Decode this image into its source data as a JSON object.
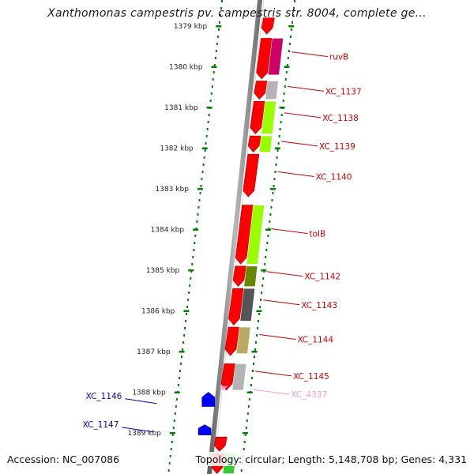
{
  "title": "Xanthomonas campestris pv. campestris str. 8004, complete ge...",
  "accession_label": "Accession: NC_007086",
  "summary_label": "Topology: circular; Length: 5,148,708 bp; Genes: 4,331",
  "colors": {
    "forward_gene": "#ff0000",
    "reverse_gene": "#0000ff",
    "pseudogene": "#ff99cc",
    "backbone": "#808080",
    "tick": "#008000"
  },
  "ruler": {
    "unit": "kbp",
    "ticks": [
      {
        "kbp": 1379,
        "label": "1379 kbp"
      },
      {
        "kbp": 1380,
        "label": "1380 kbp"
      },
      {
        "kbp": 1381,
        "label": "1381 kbp"
      },
      {
        "kbp": 1382,
        "label": "1382 kbp"
      },
      {
        "kbp": 1383,
        "label": "1383 kbp"
      },
      {
        "kbp": 1384,
        "label": "1384 kbp"
      },
      {
        "kbp": 1385,
        "label": "1385 kbp"
      },
      {
        "kbp": 1386,
        "label": "1386 kbp"
      },
      {
        "kbp": 1387,
        "label": "1387 kbp"
      },
      {
        "kbp": 1388,
        "label": "1388 kbp"
      },
      {
        "kbp": 1389,
        "label": "1389 kbp"
      }
    ]
  },
  "features": [
    {
      "kind": "gene",
      "strand": "+",
      "start": 1378.8,
      "end": 1379.2
    },
    {
      "kind": "gene",
      "strand": "+",
      "start": 1379.3,
      "end": 1380.3
    },
    {
      "kind": "gene",
      "strand": "+",
      "start": 1380.35,
      "end": 1380.8
    },
    {
      "kind": "gene",
      "strand": "+",
      "start": 1380.85,
      "end": 1381.65
    },
    {
      "kind": "gene",
      "strand": "+",
      "start": 1381.7,
      "end": 1382.1
    },
    {
      "kind": "gene",
      "strand": "+",
      "start": 1382.15,
      "end": 1383.2
    },
    {
      "kind": "gene",
      "strand": "+",
      "start": 1383.4,
      "end": 1384.85
    },
    {
      "kind": "gene",
      "strand": "+",
      "start": 1384.9,
      "end": 1385.4
    },
    {
      "kind": "gene",
      "strand": "+",
      "start": 1385.45,
      "end": 1386.35
    },
    {
      "kind": "gene",
      "strand": "+",
      "start": 1386.4,
      "end": 1387.1
    },
    {
      "kind": "gene",
      "strand": "+",
      "start": 1387.3,
      "end": 1387.95
    },
    {
      "kind": "gene",
      "strand": "-",
      "start": 1388.0,
      "end": 1388.35
    },
    {
      "kind": "gene",
      "strand": "-",
      "start": 1388.8,
      "end": 1389.05
    },
    {
      "kind": "gene",
      "strand": "+",
      "start": 1389.1,
      "end": 1389.45
    },
    {
      "kind": "gene",
      "strand": "+",
      "start": 1389.5,
      "end": 1390.0
    }
  ],
  "cogs": [
    {
      "color": "#cc0066",
      "start": 1379.3,
      "end": 1380.2,
      "label": "ruvB"
    },
    {
      "color": "#b4b4b4",
      "start": 1380.35,
      "end": 1380.8,
      "label": "XC_1137"
    },
    {
      "color": "#99ff00",
      "start": 1380.85,
      "end": 1381.65,
      "label": "XC_1138"
    },
    {
      "color": "#99ff00",
      "start": 1381.7,
      "end": 1382.1,
      "label": "XC_1139"
    },
    {
      "color": "#99ff00",
      "start": 1383.4,
      "end": 1384.85,
      "label": "tolB"
    },
    {
      "color": "#668800",
      "start": 1384.9,
      "end": 1385.4,
      "label": "XC_1142"
    },
    {
      "color": "#555555",
      "start": 1385.45,
      "end": 1386.25,
      "label": "XC_1143"
    },
    {
      "color": "#bbaa66",
      "start": 1386.4,
      "end": 1387.05,
      "label": "XC_1144"
    },
    {
      "color": "#b4b4b4",
      "start": 1387.3,
      "end": 1387.95,
      "label": "XC_1145"
    },
    {
      "color": "#33cc33",
      "start": 1389.5,
      "end": 1390.0,
      "label": ""
    }
  ],
  "gene_labels": [
    {
      "text": "ruvB",
      "color": "#cc0000",
      "kbp": 1379.75,
      "side": "right"
    },
    {
      "text": "XC_1137",
      "color": "#cc0000",
      "kbp": 1380.6,
      "side": "right"
    },
    {
      "text": "XC_1138",
      "color": "#cc0000",
      "kbp": 1381.25,
      "side": "right"
    },
    {
      "text": "XC_1139",
      "color": "#cc0000",
      "kbp": 1381.95,
      "side": "right"
    },
    {
      "text": "XC_1140",
      "color": "#cc0000",
      "kbp": 1382.7,
      "side": "right"
    },
    {
      "text": "tolB",
      "color": "#cc0000",
      "kbp": 1384.1,
      "side": "right"
    },
    {
      "text": "XC_1142",
      "color": "#cc0000",
      "kbp": 1385.15,
      "side": "right"
    },
    {
      "text": "XC_1143",
      "color": "#cc0000",
      "kbp": 1385.85,
      "side": "right"
    },
    {
      "text": "XC_1144",
      "color": "#cc0000",
      "kbp": 1386.7,
      "side": "right"
    },
    {
      "text": "XC_1145",
      "color": "#cc0000",
      "kbp": 1387.6,
      "side": "right"
    },
    {
      "text": "XC_4337",
      "color": "#ff99cc",
      "kbp": 1388.05,
      "side": "right"
    },
    {
      "text": "XC_1146",
      "color": "#0000cc",
      "kbp": 1388.2,
      "side": "left"
    },
    {
      "text": "XC_1147",
      "color": "#0000cc",
      "kbp": 1388.9,
      "side": "left"
    }
  ]
}
